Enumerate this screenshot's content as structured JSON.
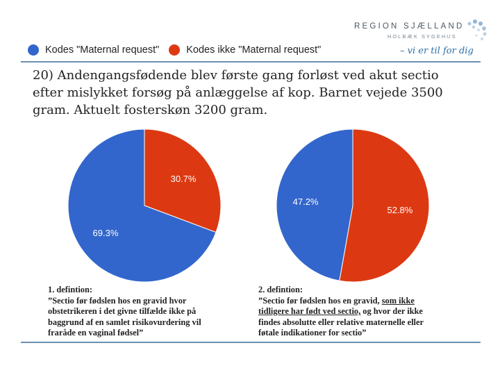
{
  "logo": {
    "name": "REGION SJÆLLAND",
    "sub": "HOLBÆK SYGEHUS",
    "tagline": "– vi er til for dig"
  },
  "question": {
    "lines": [
      "20) Andengangsfødende blev første gang forløst ved akut sectio",
      "efter mislykket forsøg på anlæggelse af kop. Barnet vejede 3500",
      "gram. Aktuelt fosterskøn 3200 gram."
    ]
  },
  "definitions": {
    "def1": {
      "title": "1. defintion:",
      "lines": [
        "”Sectio før fødslen hos en gravid hvor",
        "obstetrikeren i det givne tilfælde ikke på",
        "baggrund af en samlet risikovurdering vil",
        "fraråde en vaginal fødsel”"
      ]
    },
    "def2": {
      "title": "2. defintion:",
      "line1_plain": "”Sectio før fødslen hos en gravid, ",
      "line1_underlined": "som ikke",
      "line2_underlined": "tidligere har født ved sectio,",
      "line2_plain": " og hvor der ikke",
      "line3": "findes absolutte eller relative maternelle eller",
      "line4": "føtale indikationer for sectio”"
    }
  },
  "chart_data": {
    "type": "pie",
    "legend": [
      {
        "label": "Kodes \"Maternal request\"",
        "color": "#3366cc"
      },
      {
        "label": "Kodes ikke \"Maternal request\"",
        "color": "#dc3912"
      }
    ],
    "legend_position": "top-left",
    "charts": [
      {
        "name": "1. definition",
        "slices": [
          {
            "label": "Kodes \"Maternal request\"",
            "value": 69.3,
            "display": "69.3%",
            "color": "#3366cc"
          },
          {
            "label": "Kodes ikke \"Maternal request\"",
            "value": 30.7,
            "display": "30.7%",
            "color": "#dc3912"
          }
        ]
      },
      {
        "name": "2. definition",
        "slices": [
          {
            "label": "Kodes \"Maternal request\"",
            "value": 47.2,
            "display": "47.2%",
            "color": "#3366cc"
          },
          {
            "label": "Kodes ikke \"Maternal request\"",
            "value": 52.8,
            "display": "52.8%",
            "color": "#dc3912"
          }
        ]
      }
    ]
  }
}
